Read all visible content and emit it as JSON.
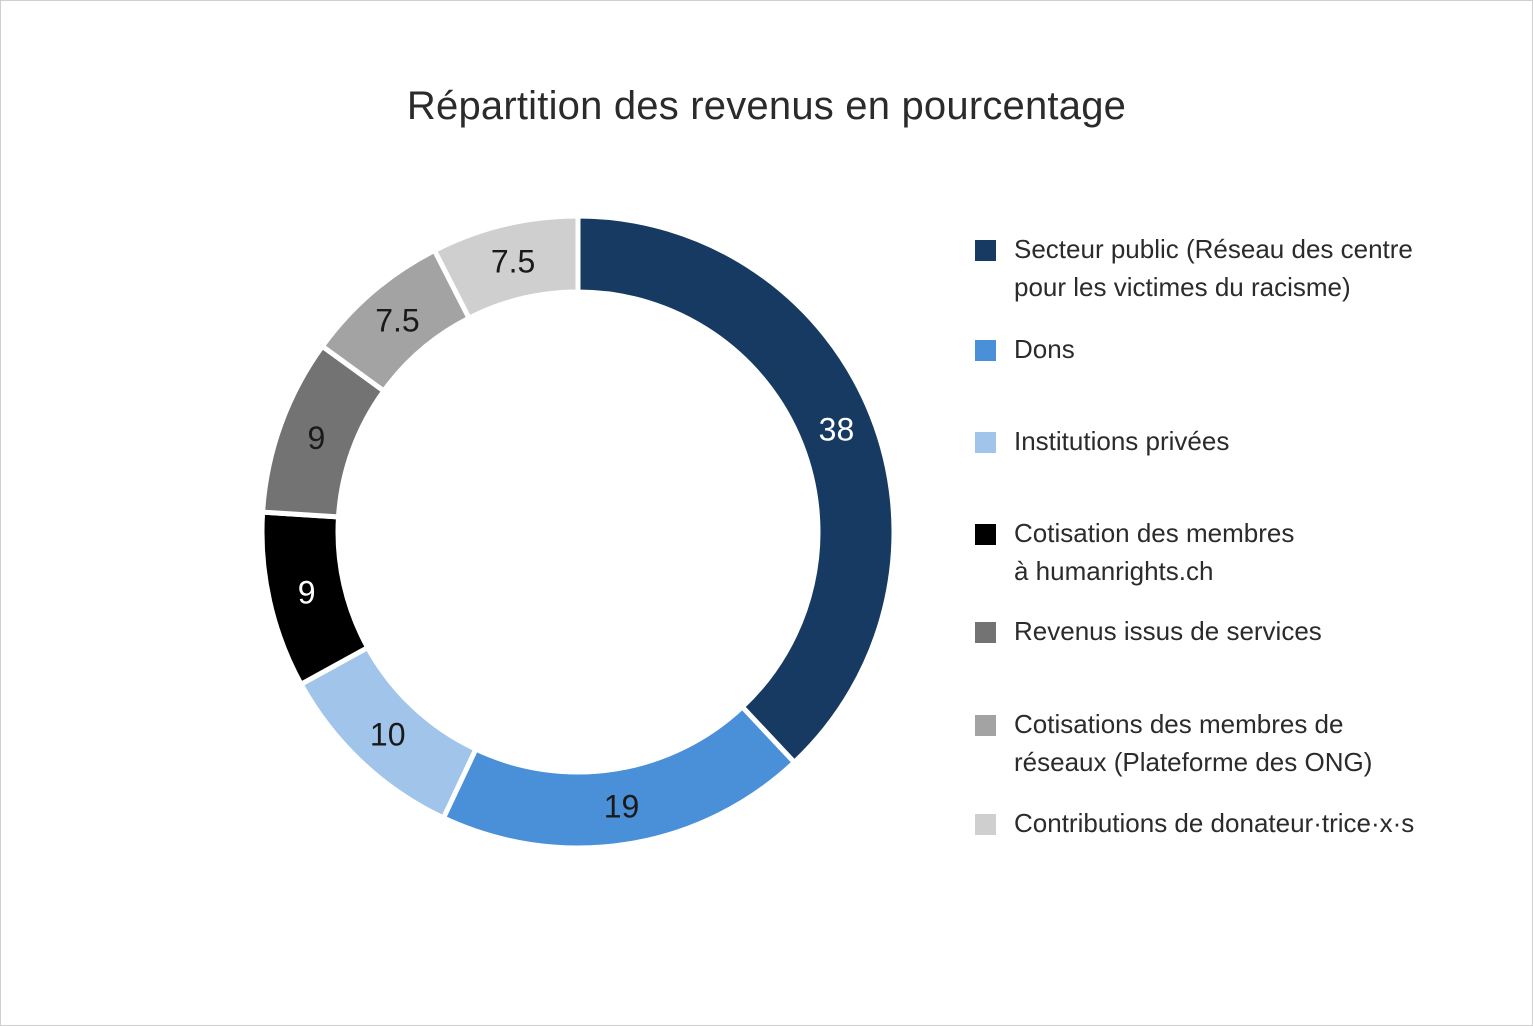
{
  "chart_data": {
    "type": "pie",
    "title": "Répartition des revenus en pourcentage",
    "legend_position": "right",
    "series": [
      {
        "name": "Secteur public (Réseau des centre\npour les victimes du racisme)",
        "value": 38,
        "label": "38",
        "color": "#173A63",
        "label_color": "#ffffff"
      },
      {
        "name": "Dons",
        "value": 19,
        "label": "19",
        "color": "#4A90D9",
        "label_color": "#1a1a1a"
      },
      {
        "name": "Institutions privées",
        "value": 10,
        "label": "10",
        "color": "#A0C4EA",
        "label_color": "#1a1a1a"
      },
      {
        "name": "Cotisation des membres\nà humanrights.ch",
        "value": 9,
        "label": "9",
        "color": "#000000",
        "label_color": "#ffffff"
      },
      {
        "name": "Revenus issus de services",
        "value": 9,
        "label": "9",
        "color": "#737373",
        "label_color": "#1a1a1a"
      },
      {
        "name": "Cotisations des membres de\nréseaux (Plateforme des ONG)",
        "value": 7.5,
        "label": "7.5",
        "color": "#A3A3A3",
        "label_color": "#1a1a1a"
      },
      {
        "name": "Contributions de donateur·trice·x·s",
        "value": 7.5,
        "label": "7.5",
        "color": "#CFCFCF",
        "label_color": "#1a1a1a"
      }
    ]
  }
}
